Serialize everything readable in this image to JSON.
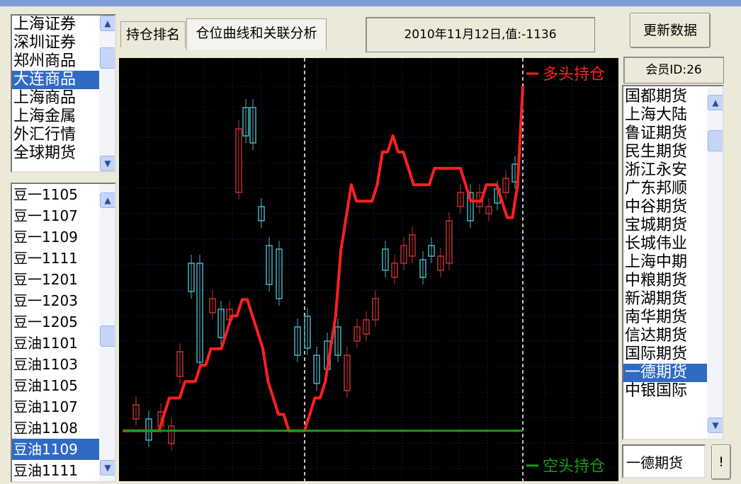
{
  "exchanges": {
    "items": [
      "上海证券",
      "深圳证券",
      "郑州商品",
      "大连商品",
      "上海商品",
      "上海金属",
      "外汇行情",
      "全球期货"
    ],
    "selected_index": 3
  },
  "contracts": {
    "items": [
      "豆一1105",
      "豆一1107",
      "豆一1109",
      "豆一1111",
      "豆一1201",
      "豆一1203",
      "豆一1205",
      "豆油1101",
      "豆油1103",
      "豆油1105",
      "豆油1107",
      "豆油1108",
      "豆油1109",
      "豆油1111"
    ],
    "selected_index": 12
  },
  "tabs": [
    "持仓排名",
    "仓位曲线和关联分析"
  ],
  "active_tab": 1,
  "status_text": "2010年11月12日,值:-1136",
  "update_button": "更新数据",
  "member_id_label": "会员ID:26",
  "members": {
    "items": [
      "国都期货",
      "上海大陆",
      "鲁证期货",
      "民生期货",
      "浙江永安",
      "广东邦顺",
      "中谷期货",
      "宝城期货",
      "长城伟业",
      "上海中期",
      "中粮期货",
      "新湖期货",
      "南华期货",
      "信达期货",
      "国际期货",
      "一德期货",
      "中银国际"
    ],
    "selected_index": 15
  },
  "member_name_field": "一德期货",
  "exclaim_button": "!",
  "chart_data": {
    "type": "line",
    "series": [
      {
        "name": "多头持仓",
        "color": "#ff2020",
        "values": [
          1,
          1,
          1,
          1,
          1,
          1,
          1,
          1,
          2,
          3,
          3,
          3,
          4,
          4,
          4,
          5,
          5,
          6,
          6,
          6,
          7,
          8,
          8,
          9,
          9,
          8,
          7,
          6,
          4,
          3,
          2,
          2,
          1,
          1,
          1,
          1,
          2,
          3,
          3,
          4,
          6,
          8,
          12,
          14,
          16,
          15,
          15,
          15,
          15,
          16,
          18,
          18,
          19,
          18,
          18,
          17,
          16,
          16,
          16,
          16,
          17,
          17,
          17,
          17,
          17,
          17,
          16,
          15,
          15,
          15,
          16,
          16,
          16,
          15,
          14,
          14,
          16,
          22
        ]
      },
      {
        "name": "空头持仓",
        "color": "#1a9a1a",
        "values": [
          1,
          1,
          1,
          1,
          1,
          1,
          1,
          1,
          1,
          1,
          1,
          1,
          1,
          1,
          1,
          1,
          1,
          1,
          1,
          1,
          1,
          1,
          1,
          1,
          1,
          1,
          1,
          1,
          1,
          1,
          1,
          1,
          1,
          1,
          1,
          1,
          1,
          1,
          1,
          1,
          1,
          1,
          1,
          1,
          1,
          1,
          1,
          1,
          1,
          1,
          1,
          1,
          1,
          1,
          1,
          1,
          1,
          1,
          1,
          1,
          1,
          1,
          1,
          1,
          1,
          1,
          1,
          1,
          1,
          1,
          1,
          1,
          1,
          1,
          1,
          1,
          1,
          1
        ]
      }
    ],
    "legend_placement": "right"
  }
}
